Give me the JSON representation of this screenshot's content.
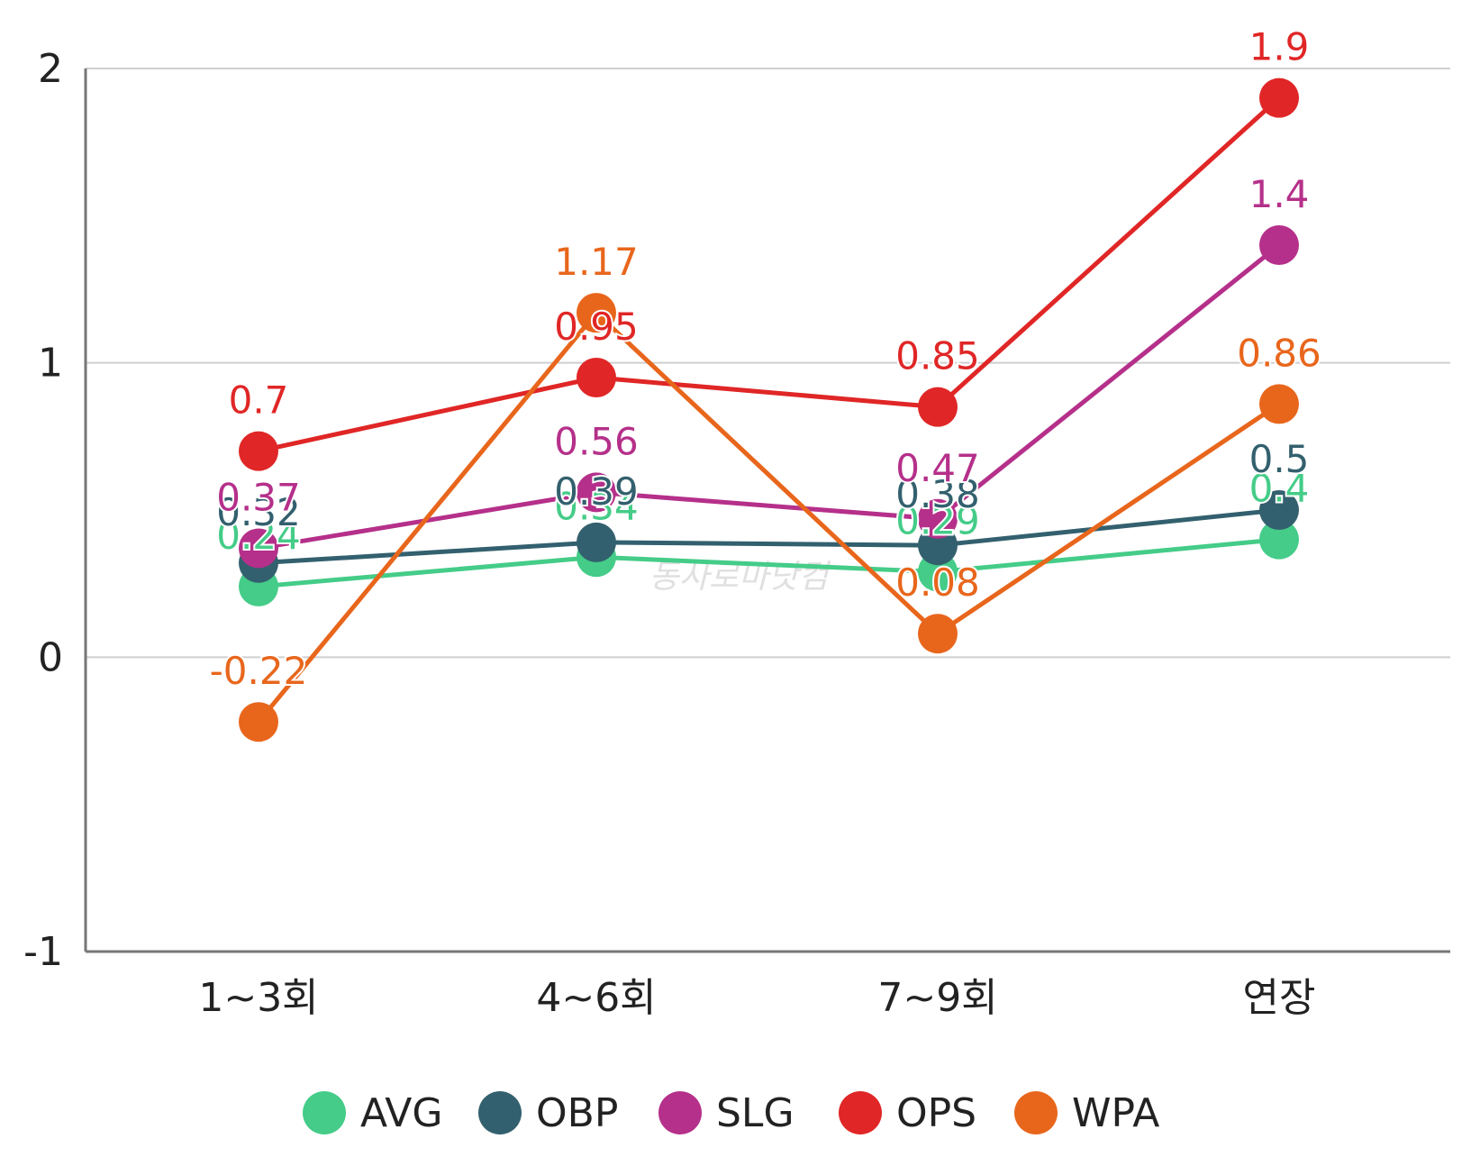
{
  "watermark": "동사로마닷컴",
  "chart_data": {
    "type": "line",
    "categories": [
      "1~3회",
      "4~6회",
      "7~9회",
      "연장"
    ],
    "ylim": [
      -1,
      2
    ],
    "yticks": [
      2,
      1,
      0,
      -1
    ],
    "grid": true,
    "legend_position": "bottom",
    "series": [
      {
        "name": "AVG",
        "color": "#44cc88",
        "values": [
          0.24,
          0.34,
          0.29,
          0.4
        ],
        "labels": [
          "0.24",
          "0.34",
          "0.29",
          "0.4"
        ]
      },
      {
        "name": "OBP",
        "color": "#33606e",
        "values": [
          0.32,
          0.39,
          0.38,
          0.5
        ],
        "labels": [
          "0.32",
          "0.39",
          "0.38",
          "0.5"
        ]
      },
      {
        "name": "SLG",
        "color": "#b5308a",
        "values": [
          0.37,
          0.56,
          0.47,
          1.4
        ],
        "labels": [
          "0.37",
          "0.56",
          "0.47",
          "1.4"
        ]
      },
      {
        "name": "OPS",
        "color": "#e02626",
        "values": [
          0.7,
          0.95,
          0.85,
          1.9
        ],
        "labels": [
          "0.7",
          "0.95",
          "0.85",
          "1.9"
        ]
      },
      {
        "name": "WPA",
        "color": "#e8661c",
        "values": [
          -0.22,
          1.17,
          0.08,
          0.86
        ],
        "labels": [
          "-0.22",
          "1.17",
          "0.08",
          "0.86"
        ]
      }
    ]
  }
}
